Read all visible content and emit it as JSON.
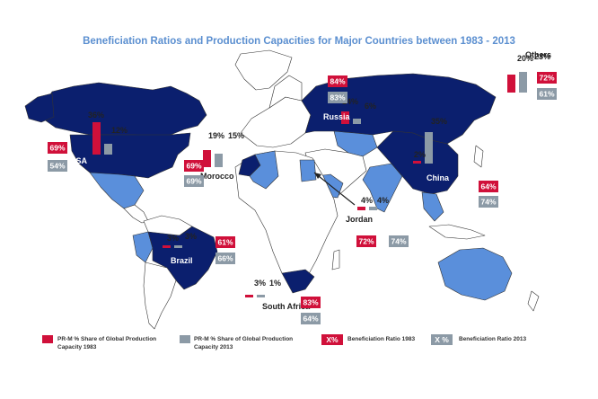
{
  "title": "Beneficiation Ratios and Production Capacities for Major Countries between 1983 - 2013",
  "colors": {
    "dark_blue": "#0b1f6e",
    "light_blue": "#5a8fdb",
    "red": "#d0103a",
    "gray": "#8c9aa6",
    "title_blue": "#5b8fd0"
  },
  "countries": [
    {
      "name": "USA",
      "share_1983": "36%",
      "share_2013": "12%",
      "ratio_1983": "69%",
      "ratio_2013": "54%"
    },
    {
      "name": "Morocco",
      "share_1983": "19%",
      "share_2013": "15%",
      "ratio_1983": "69%",
      "ratio_2013": "69%"
    },
    {
      "name": "Russia",
      "share_1983": "14%",
      "share_2013": "6%",
      "ratio_1983": "84%",
      "ratio_2013": "83%"
    },
    {
      "name": "China",
      "share_1983": "2%",
      "share_2013": "35%",
      "ratio_1983": "64%",
      "ratio_2013": "74%"
    },
    {
      "name": "Jordan",
      "share_1983": "4%",
      "share_2013": "4%",
      "ratio_1983": "72%",
      "ratio_2013": "74%"
    },
    {
      "name": "Brazil",
      "share_1983": "3%",
      "share_2013": "3%",
      "ratio_1983": "61%",
      "ratio_2013": "66%"
    },
    {
      "name": "South Africa",
      "share_1983": "3%",
      "share_2013": "1%",
      "ratio_1983": "83%",
      "ratio_2013": "64%"
    },
    {
      "name": "Others",
      "share_1983": "20%",
      "share_2013": "23%",
      "ratio_1983": "72%",
      "ratio_2013": "61%"
    }
  ],
  "legend": {
    "share_1983": "PR-M % Share of Global Production Capacity 1983",
    "share_2013": "PR-M % Share of Global Production Capacity 2013",
    "ratio_1983_box": "X%",
    "ratio_1983": "Beneficiation Ratio 1983",
    "ratio_2013_box": "X %",
    "ratio_2013": "Beneficiation Ratio 2013"
  }
}
